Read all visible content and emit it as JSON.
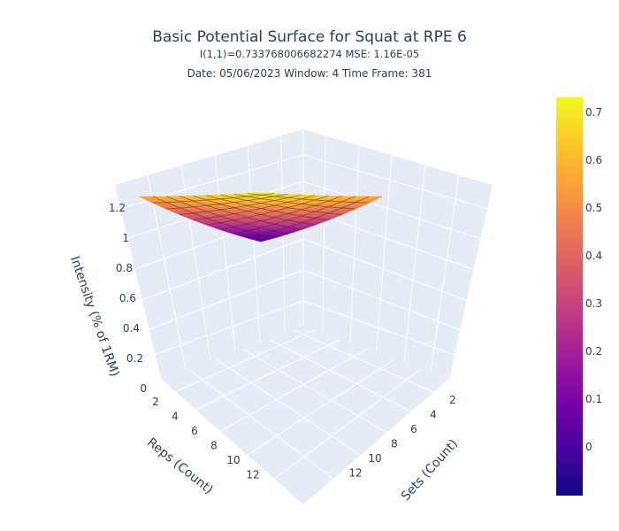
{
  "chart_data": {
    "type": "surface",
    "title": "Basic Potential Surface for Squat at RPE 6",
    "subtitle": "I(1,1)=0.733768006682274  MSE: 1.16E-05",
    "info": "Date: 05/06/2023  Window: 4  Time Frame: 381",
    "xlabel": "Sets (Count)",
    "ylabel": "Reps (Count)",
    "zlabel": "Intensity (% of 1RM)",
    "xlim": [
      1,
      12
    ],
    "ylim": [
      1,
      12
    ],
    "zlim": [
      0,
      1.3
    ],
    "x_ticks": [
      "2",
      "4",
      "6",
      "8",
      "10",
      "12"
    ],
    "y_ticks": [
      "2",
      "4",
      "6",
      "8",
      "10",
      "12"
    ],
    "z_ticks": [
      "0",
      "0.2",
      "0.4",
      "0.6",
      "0.8",
      "1",
      "1.2"
    ],
    "surface_samples": [
      {
        "sets": 1,
        "reps": 1,
        "intensity": 0.734
      },
      {
        "sets": 1,
        "reps": 12,
        "intensity": 0.56
      },
      {
        "sets": 12,
        "reps": 1,
        "intensity": 0.56
      },
      {
        "sets": 12,
        "reps": 12,
        "intensity": 0.0
      }
    ],
    "colorscale": "plasma",
    "colorbar": {
      "ticks": [
        "0",
        "0.1",
        "0.2",
        "0.3",
        "0.4",
        "0.5",
        "0.6",
        "0.7"
      ],
      "range": [
        -0.1,
        0.73
      ]
    },
    "grid": true
  },
  "colors": {
    "text": "#2a3f5f",
    "scene_bg": "#e5ecf6",
    "grid": "#ffffff"
  }
}
